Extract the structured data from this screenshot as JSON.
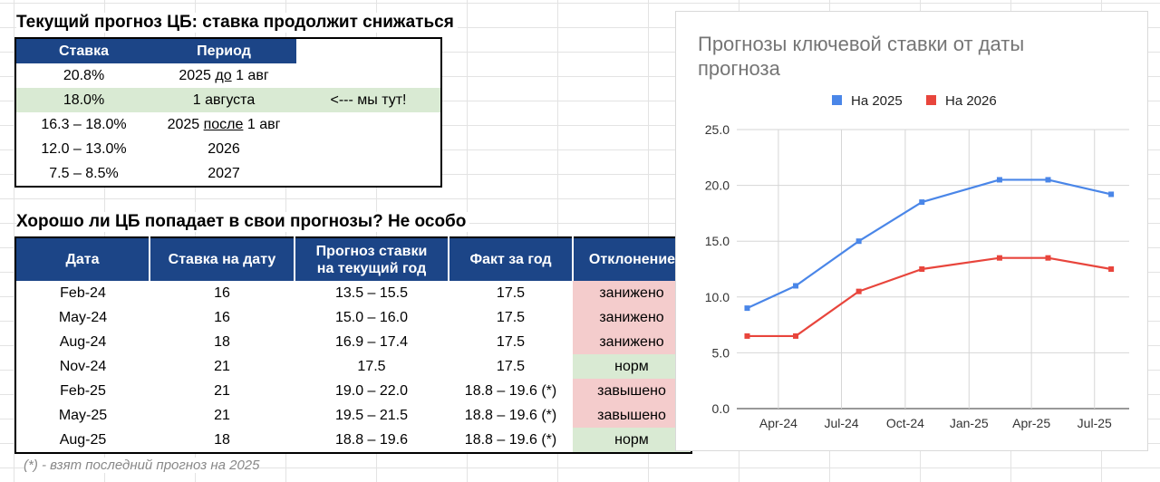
{
  "top_section": {
    "title": "Текущий прогноз ЦБ: ставка продолжит снижаться",
    "headers": [
      "Ставка",
      "Период"
    ],
    "rows": [
      {
        "rate": "20.8%",
        "p1": "2025 ",
        "pu": "до",
        "p2": " 1 авг",
        "note": ""
      },
      {
        "rate": "18.0%",
        "p1": "1 августа",
        "pu": "",
        "p2": "",
        "note": "<--- мы тут!"
      },
      {
        "rate": "16.3 – 18.0%",
        "p1": "2025 ",
        "pu": "после",
        "p2": " 1 авг",
        "note": ""
      },
      {
        "rate": "12.0 – 13.0%",
        "p1": "2026",
        "pu": "",
        "p2": "",
        "note": ""
      },
      {
        "rate": "7.5 – 8.5%",
        "p1": "2027",
        "pu": "",
        "p2": "",
        "note": ""
      }
    ]
  },
  "accuracy_section": {
    "title": "Хорошо ли ЦБ попадает в свои прогнозы? Не особо",
    "headers": {
      "date": "Дата",
      "rate": "Ставка на дату",
      "forecast_l1": "Прогноз ставки",
      "forecast_l2": "на текущий год",
      "fact": "Факт за год",
      "deviation": "Отклонение"
    },
    "rows": [
      {
        "date": "Feb-24",
        "rate": "16",
        "forecast": "13.5 – 15.5",
        "fact": "17.5",
        "deviation": "занижено",
        "status": "low"
      },
      {
        "date": "May-24",
        "rate": "16",
        "forecast": "15.0 – 16.0",
        "fact": "17.5",
        "deviation": "занижено",
        "status": "low"
      },
      {
        "date": "Aug-24",
        "rate": "18",
        "forecast": "16.9 – 17.4",
        "fact": "17.5",
        "deviation": "занижено",
        "status": "low"
      },
      {
        "date": "Nov-24",
        "rate": "21",
        "forecast": "17.5",
        "fact": "17.5",
        "deviation": "норм",
        "status": "ok"
      },
      {
        "date": "Feb-25",
        "rate": "21",
        "forecast": "19.0 – 22.0",
        "fact": "18.8 – 19.6 (*)",
        "deviation": "завышено",
        "status": "low"
      },
      {
        "date": "May-25",
        "rate": "21",
        "forecast": "19.5 – 21.5",
        "fact": "18.8 – 19.6 (*)",
        "deviation": "завышено",
        "status": "low"
      },
      {
        "date": "Aug-25",
        "rate": "18",
        "forecast": "18.8 – 19.6",
        "fact": "18.8 – 19.6 (*)",
        "deviation": "норм",
        "status": "ok"
      }
    ],
    "footnote": "(*) - взят последний прогноз на 2025"
  },
  "colors": {
    "header_bg": "#1c4587",
    "highlight_green": "#d9ead3",
    "highlight_red": "#f4cccc",
    "series_2025": "#4a86e8",
    "series_2026": "#e8453c"
  },
  "chart_data": {
    "type": "line",
    "title_line1": "Прогнозы ключевой ставки от даты",
    "title_line2": "прогноза",
    "legend_position": "top",
    "x_ticks": [
      "Apr-24",
      "Jul-24",
      "Oct-24",
      "Jan-25",
      "Apr-25",
      "Jul-25"
    ],
    "x_tick_dates": [
      "2024-04-01",
      "2024-07-01",
      "2024-10-01",
      "2025-01-01",
      "2025-04-01",
      "2025-07-01"
    ],
    "x_range": [
      "2024-02-01",
      "2025-08-20"
    ],
    "y_ticks": [
      "0.0",
      "5.0",
      "10.0",
      "15.0",
      "20.0",
      "25.0"
    ],
    "ylim": [
      0,
      25
    ],
    "grid": true,
    "series": [
      {
        "name": "На 2025",
        "color": "#4a86e8",
        "x": [
          "2024-02-16",
          "2024-04-26",
          "2024-07-26",
          "2024-10-25",
          "2025-02-14",
          "2025-04-25",
          "2025-07-25"
        ],
        "y": [
          9.0,
          11.0,
          15.0,
          18.5,
          20.5,
          20.5,
          19.2
        ]
      },
      {
        "name": "На 2026",
        "color": "#e8453c",
        "x": [
          "2024-02-16",
          "2024-04-26",
          "2024-07-26",
          "2024-10-25",
          "2025-02-14",
          "2025-04-25",
          "2025-07-25"
        ],
        "y": [
          6.5,
          6.5,
          10.5,
          12.5,
          13.5,
          13.5,
          12.5
        ]
      }
    ]
  }
}
